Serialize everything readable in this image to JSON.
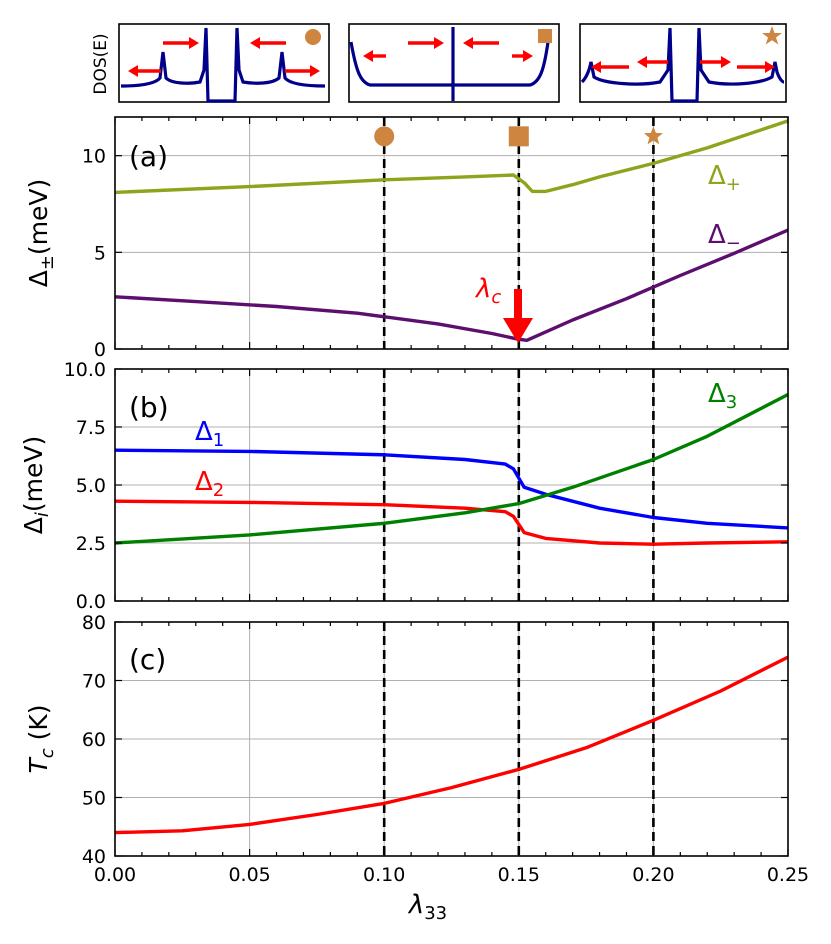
{
  "chart_data": {
    "type": "line",
    "x_label": "λ33",
    "x_range": [
      0,
      0.25
    ],
    "x_ticks": [
      "0.00",
      "0.05",
      "0.10",
      "0.15",
      "0.20",
      "0.25"
    ],
    "x_tick_values": [
      0,
      0.05,
      0.1,
      0.15,
      0.2,
      0.25
    ],
    "vertical_dashed_lines": [
      0.1,
      0.15,
      0.2
    ],
    "grid": true,
    "insets": {
      "ylabel": "DOS(E)",
      "items": [
        {
          "marker": "circle",
          "color": "#cd853f",
          "x": 0.1
        },
        {
          "marker": "square",
          "color": "#cd853f",
          "x": 0.15
        },
        {
          "marker": "star",
          "color": "#cd853f",
          "x": 0.2
        }
      ]
    },
    "panels": [
      {
        "label": "(a)",
        "ylabel": "Δ±(meV)",
        "ylim": [
          0,
          12
        ],
        "y_ticks": [
          "0",
          "5",
          "10"
        ],
        "y_tick_values": [
          0,
          5,
          10
        ],
        "markers": [
          {
            "shape": "circle",
            "x": 0.1,
            "y": 11,
            "color": "#cd853f"
          },
          {
            "shape": "square",
            "x": 0.15,
            "y": 11,
            "color": "#cd853f"
          },
          {
            "shape": "star",
            "x": 0.2,
            "y": 11,
            "color": "#cd853f"
          }
        ],
        "annotation": {
          "text": "λc",
          "x": 0.15,
          "y": 2.9,
          "color": "#ff0000"
        },
        "series": [
          {
            "name": "Δ+",
            "color": "#8fa31c",
            "x": [
              0,
              0.05,
              0.1,
              0.13,
              0.148,
              0.152,
              0.155,
              0.16,
              0.17,
              0.18,
              0.2,
              0.22,
              0.25
            ],
            "y": [
              8.1,
              8.4,
              8.75,
              8.9,
              9.0,
              8.6,
              8.15,
              8.15,
              8.5,
              8.9,
              9.6,
              10.4,
              11.8
            ]
          },
          {
            "name": "Δ−",
            "color": "#5c0f6e",
            "x": [
              0,
              0.03,
              0.06,
              0.09,
              0.12,
              0.14,
              0.15,
              0.153,
              0.17,
              0.19,
              0.21,
              0.23,
              0.25
            ],
            "y": [
              2.7,
              2.45,
              2.2,
              1.85,
              1.3,
              0.8,
              0.5,
              0.45,
              1.5,
              2.6,
              3.8,
              4.95,
              6.15
            ]
          }
        ]
      },
      {
        "label": "(b)",
        "ylabel": "Δi(meV)",
        "ylim": [
          0,
          10
        ],
        "y_ticks": [
          "0.0",
          "2.5",
          "5.0",
          "7.5",
          "10.0"
        ],
        "y_tick_values": [
          0,
          2.5,
          5,
          7.5,
          10
        ],
        "series": [
          {
            "name": "Δ1",
            "color": "#0000ff",
            "x": [
              0,
              0.05,
              0.1,
              0.13,
              0.145,
              0.148,
              0.152,
              0.16,
              0.18,
              0.2,
              0.22,
              0.25
            ],
            "y": [
              6.5,
              6.45,
              6.3,
              6.1,
              5.9,
              5.7,
              4.9,
              4.6,
              4.0,
              3.6,
              3.35,
              3.15
            ]
          },
          {
            "name": "Δ2",
            "color": "#ff0000",
            "x": [
              0,
              0.05,
              0.1,
              0.13,
              0.145,
              0.148,
              0.152,
              0.16,
              0.18,
              0.2,
              0.22,
              0.25
            ],
            "y": [
              4.3,
              4.25,
              4.15,
              4.0,
              3.85,
              3.65,
              2.95,
              2.7,
              2.5,
              2.45,
              2.5,
              2.55
            ]
          },
          {
            "name": "Δ3",
            "color": "#008000",
            "x": [
              0,
              0.05,
              0.1,
              0.13,
              0.15,
              0.17,
              0.2,
              0.22,
              0.25
            ],
            "y": [
              2.5,
              2.85,
              3.35,
              3.8,
              4.2,
              4.9,
              6.1,
              7.1,
              8.9
            ]
          }
        ]
      },
      {
        "label": "(c)",
        "ylabel": "Tc (K)",
        "ylim": [
          40,
          80
        ],
        "y_ticks": [
          "40",
          "50",
          "60",
          "70",
          "80"
        ],
        "y_tick_values": [
          40,
          50,
          60,
          70,
          80
        ],
        "series": [
          {
            "name": "Tc",
            "color": "#ff0000",
            "x": [
              0,
              0.025,
              0.05,
              0.075,
              0.1,
              0.125,
              0.15,
              0.175,
              0.2,
              0.225,
              0.25
            ],
            "y": [
              44.0,
              44.3,
              45.4,
              47.1,
              49.0,
              51.7,
              54.8,
              58.5,
              63.2,
              68.2,
              74.0
            ]
          }
        ]
      }
    ]
  },
  "labels": {
    "delta_plus": "Δ",
    "delta_plus_sub": "+",
    "delta_minus": "Δ",
    "delta_minus_sub": "−",
    "delta_1": "Δ",
    "delta_1_sub": "1",
    "delta_2": "Δ",
    "delta_2_sub": "2",
    "delta_3": "Δ",
    "delta_3_sub": "3",
    "lambda_c": "λ",
    "lambda_c_sub": "c",
    "ylabel_a_main": "Δ",
    "ylabel_a_sub": "±",
    "ylabel_a_unit": "(meV)",
    "ylabel_b_main": "Δ",
    "ylabel_b_sub": "i",
    "ylabel_b_unit": "(meV)",
    "ylabel_c_main": "T",
    "ylabel_c_sub": "c",
    "ylabel_c_unit": " (K)",
    "xlabel_main": "λ",
    "xlabel_sub": "33"
  }
}
